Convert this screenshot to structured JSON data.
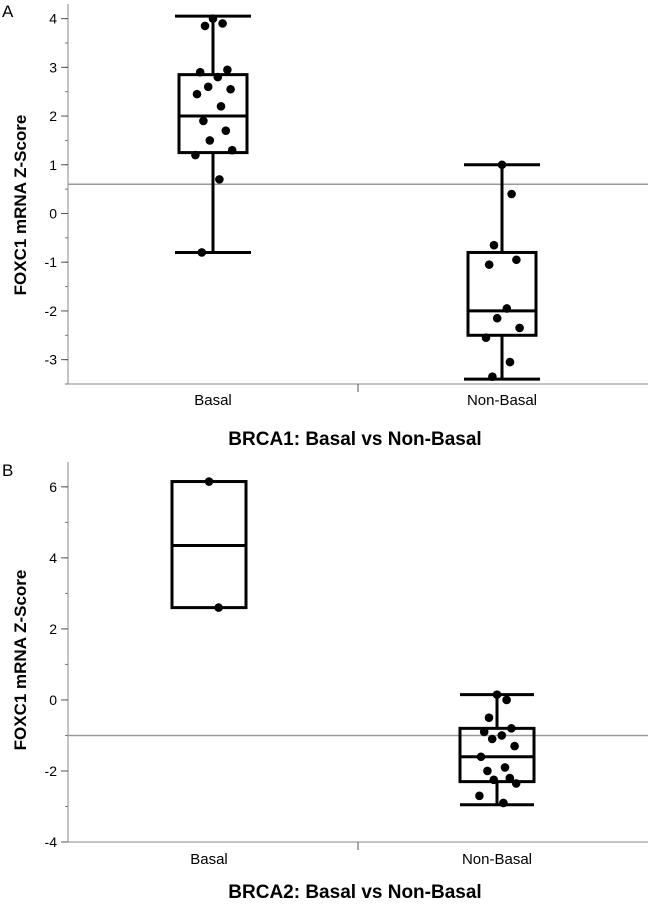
{
  "chart_data": [
    {
      "type": "box",
      "panel_letter": "A",
      "xlabel": "BRCA1: Basal vs Non-Basal",
      "ylabel": "FOXC1 mRNA Z-Score",
      "categories": [
        "Basal",
        "Non-Basal"
      ],
      "ylim": [
        -3.5,
        4.3
      ],
      "yticks": [
        -3,
        -2,
        -1,
        0,
        1,
        2,
        3,
        4
      ],
      "reference_line": 0.6,
      "boxes": [
        {
          "category": "Basal",
          "min": -0.8,
          "q1": 1.25,
          "median": 2.0,
          "q3": 2.85,
          "max": 4.05
        },
        {
          "category": "Non-Basal",
          "min": -3.4,
          "q1": -2.5,
          "median": -2.0,
          "q3": -0.8,
          "max": 1.0
        }
      ],
      "points": [
        {
          "category": "Basal",
          "values": [
            4.0,
            3.9,
            3.85,
            2.95,
            2.9,
            2.8,
            2.6,
            2.55,
            2.45,
            2.2,
            1.9,
            1.7,
            1.5,
            1.3,
            1.2,
            0.7,
            -0.8
          ]
        },
        {
          "category": "Non-Basal",
          "values": [
            1.0,
            0.4,
            -0.65,
            -0.95,
            -1.05,
            -1.95,
            -2.15,
            -2.35,
            -2.55,
            -3.05,
            -3.35
          ]
        }
      ]
    },
    {
      "type": "box",
      "panel_letter": "B",
      "xlabel": "BRCA2: Basal vs Non-Basal",
      "ylabel": "FOXC1 mRNA Z-Score",
      "categories": [
        "Basal",
        "Non-Basal"
      ],
      "ylim": [
        -4,
        6.7
      ],
      "yticks": [
        -4,
        -2,
        0,
        2,
        4,
        6
      ],
      "reference_line": -1.0,
      "boxes": [
        {
          "category": "Basal",
          "min": 2.6,
          "q1": 2.6,
          "median": 4.35,
          "q3": 6.15,
          "max": 6.15
        },
        {
          "category": "Non-Basal",
          "min": -2.95,
          "q1": -2.3,
          "median": -1.6,
          "q3": -0.8,
          "max": 0.15
        }
      ],
      "points": [
        {
          "category": "Basal",
          "values": [
            6.15,
            2.6
          ]
        },
        {
          "category": "Non-Basal",
          "values": [
            0.15,
            0.0,
            -0.5,
            -0.8,
            -0.9,
            -1.0,
            -1.1,
            -1.3,
            -1.6,
            -1.9,
            -2.0,
            -2.2,
            -2.25,
            -2.35,
            -2.7,
            -2.9
          ]
        }
      ]
    }
  ]
}
